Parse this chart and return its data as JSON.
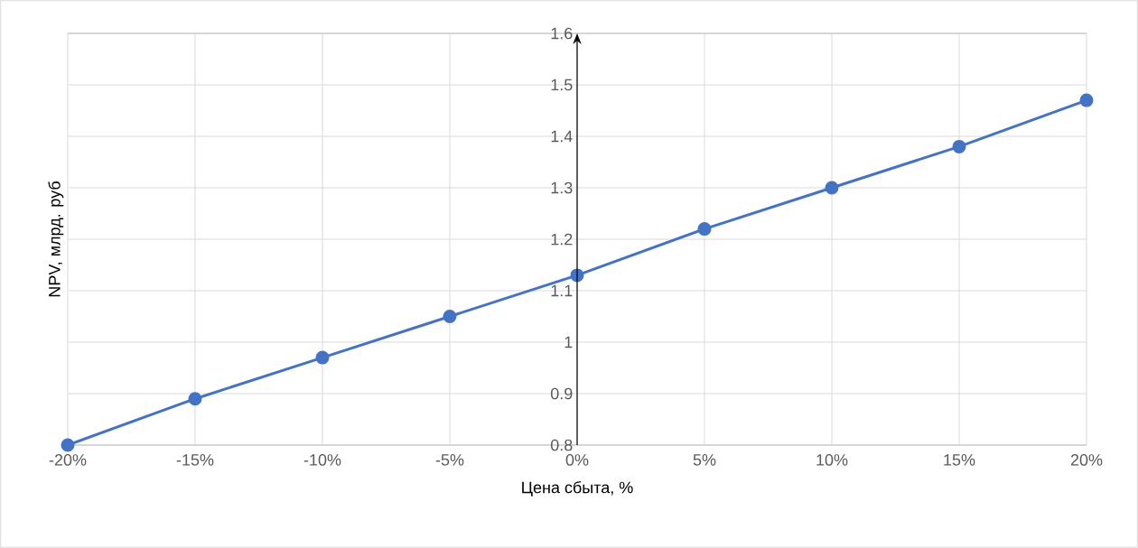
{
  "chart_data": {
    "type": "line",
    "xlabel": "Цена сбыта, %",
    "ylabel": "NPV, млрд. руб",
    "categories": [
      "-20%",
      "-15%",
      "-10%",
      "-5%",
      "0%",
      "5%",
      "10%",
      "15%",
      "20%"
    ],
    "series": [
      {
        "color": "#4472c4",
        "values": [
          0.8,
          0.89,
          0.97,
          1.05,
          1.13,
          1.22,
          1.3,
          1.38,
          1.47
        ]
      }
    ],
    "ylim": [
      0.8,
      1.6
    ],
    "yticks": [
      0.8,
      0.9,
      1,
      1.1,
      1.2,
      1.3,
      1.4,
      1.5,
      1.6
    ],
    "grid": true,
    "marker": "circle",
    "line_style": "solid"
  }
}
